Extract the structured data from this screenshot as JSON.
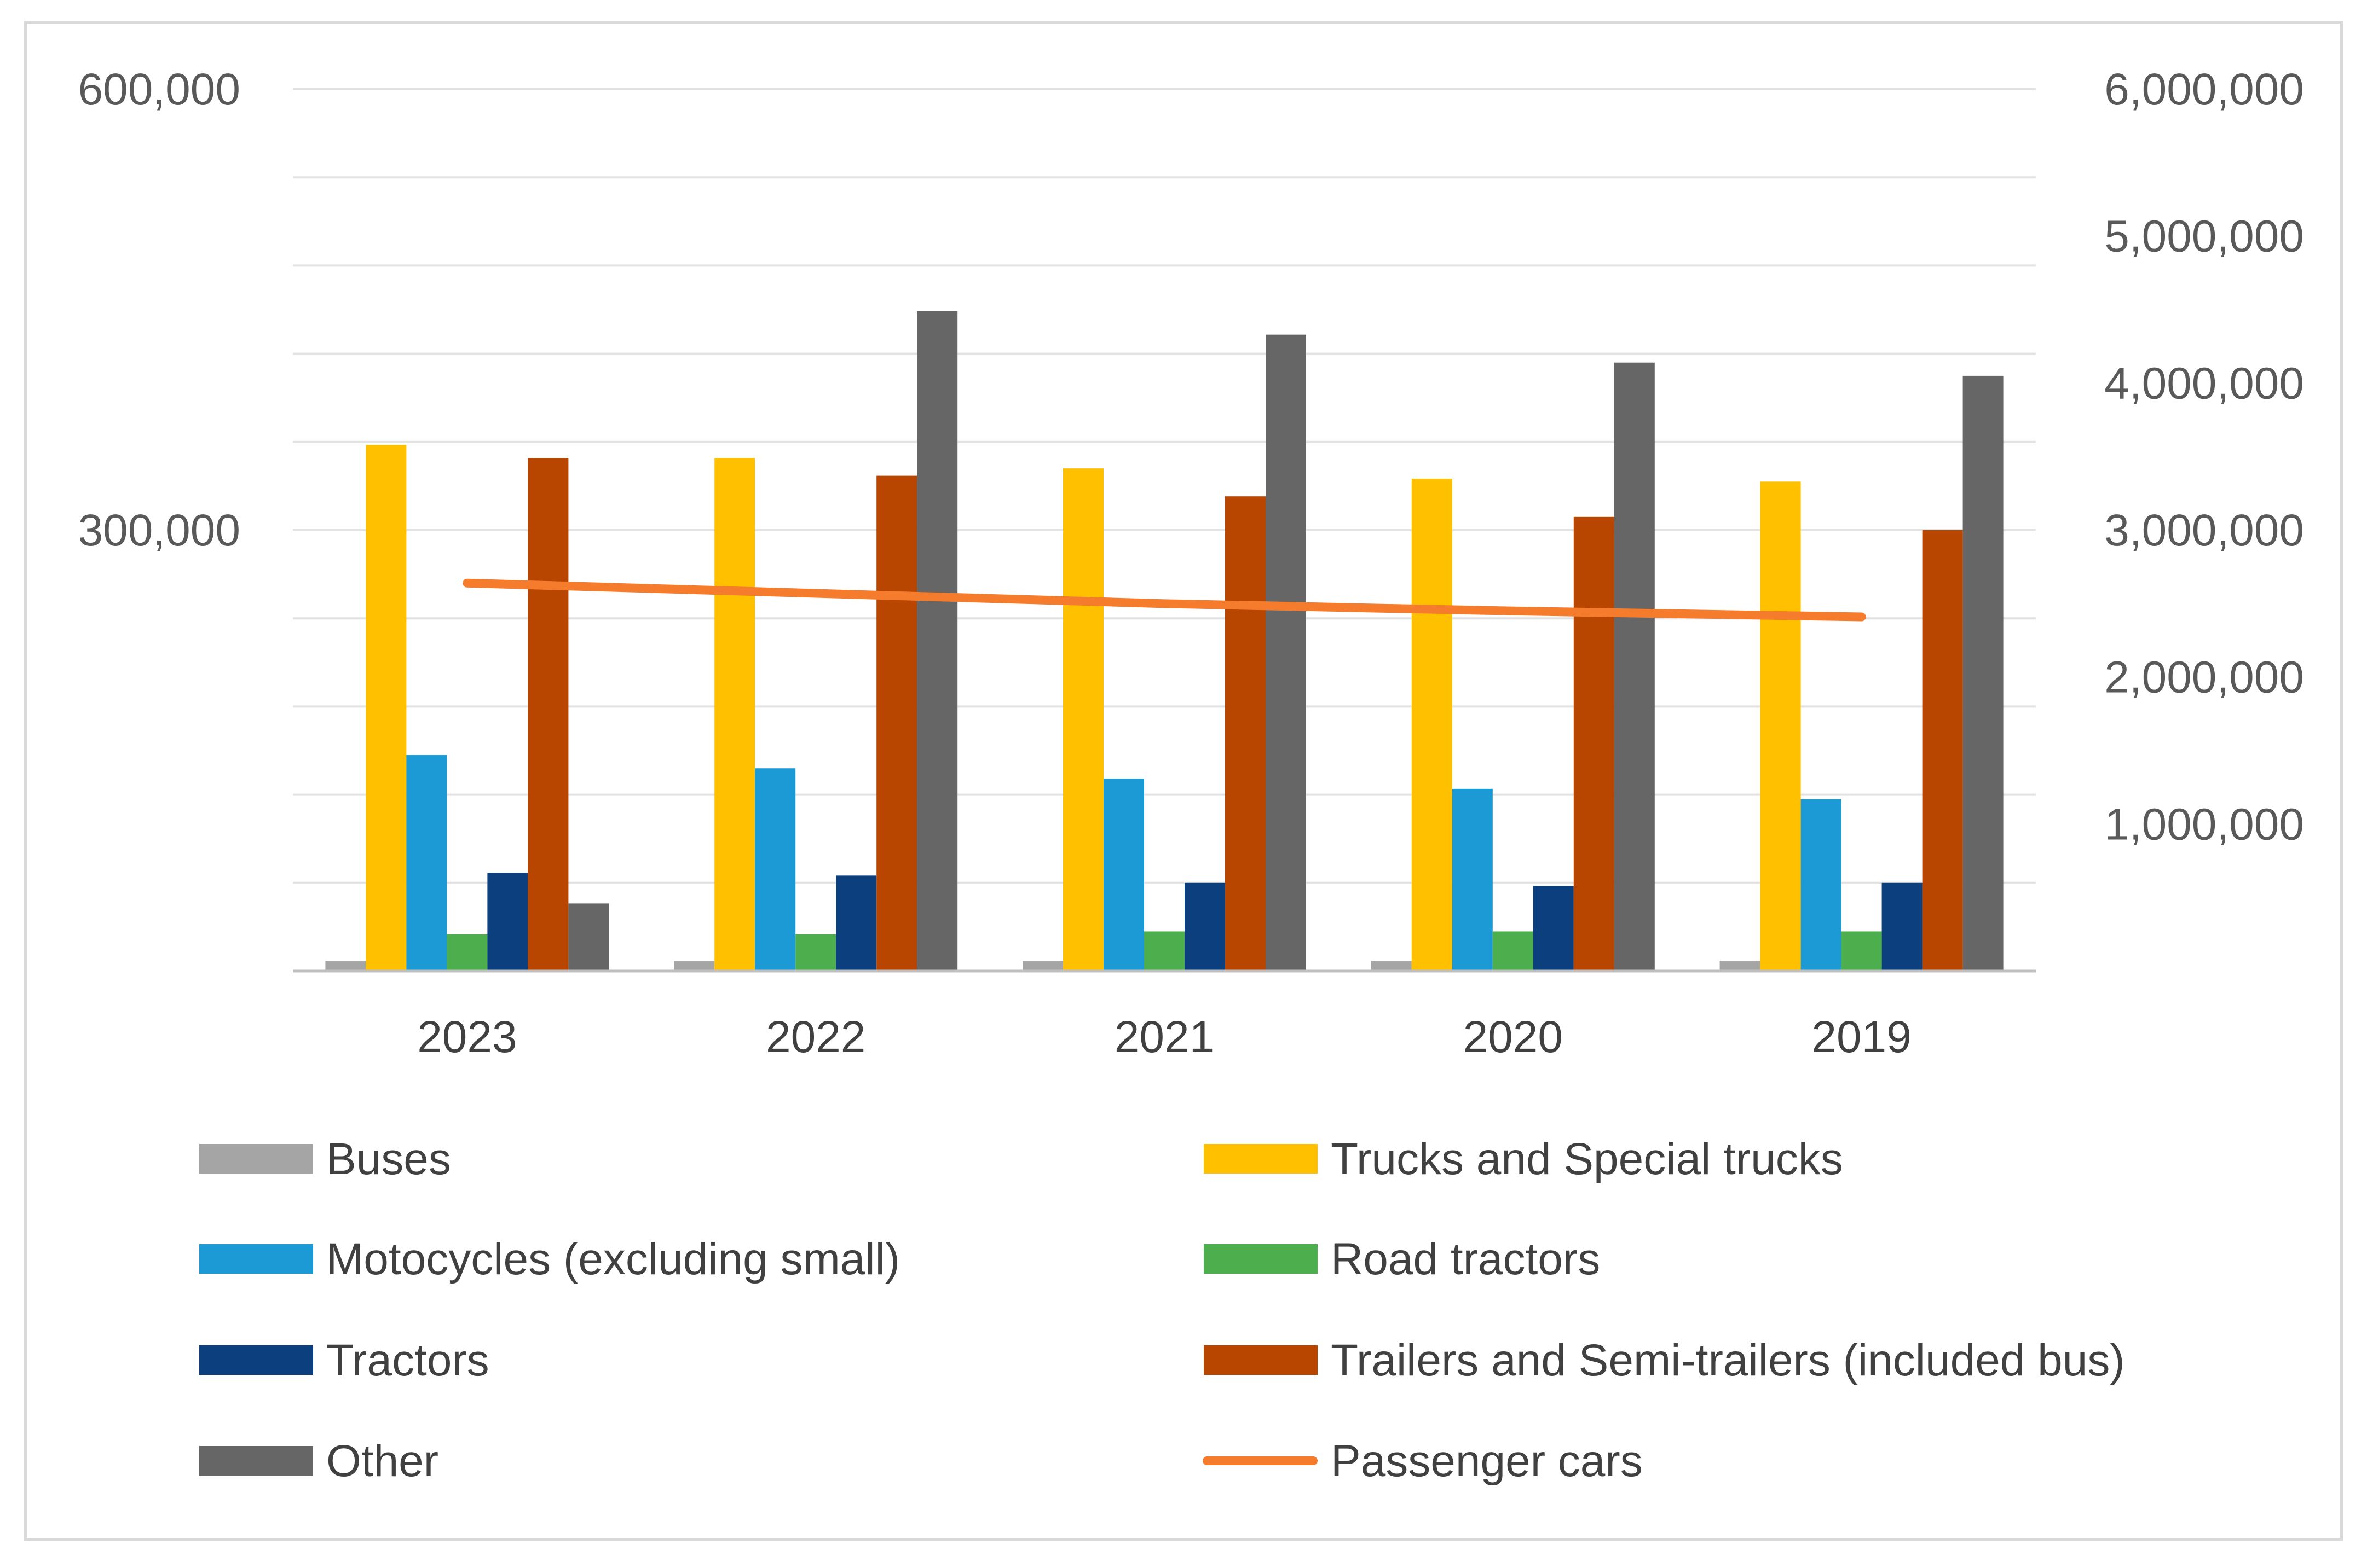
{
  "chart_data": {
    "type": "bar",
    "categories": [
      "2023",
      "2022",
      "2021",
      "2020",
      "2019"
    ],
    "left_axis": {
      "min": 0,
      "max": 600000,
      "ticks": [
        "600,000",
        "300,000"
      ],
      "tick_values": [
        600000,
        300000
      ]
    },
    "right_axis": {
      "min": 0,
      "max": 6000000,
      "ticks": [
        "6,000,000",
        "5,000,000",
        "4,000,000",
        "3,000,000",
        "2,000,000",
        "1,000,000"
      ],
      "tick_values": [
        6000000,
        5000000,
        4000000,
        3000000,
        2000000,
        1000000
      ]
    },
    "gridlines": true,
    "legend_position": "bottom",
    "series": [
      {
        "name": "Buses",
        "axis": "left",
        "kind": "bar",
        "color": "#a5a5a5",
        "values": [
          7000,
          7000,
          7000,
          7000,
          7000
        ]
      },
      {
        "name": "Trucks and Special trucks",
        "axis": "left",
        "kind": "bar",
        "color": "#ffc000",
        "values": [
          358000,
          349000,
          342000,
          335000,
          333000
        ]
      },
      {
        "name": "Motocycles (excluding small)",
        "axis": "left",
        "kind": "bar",
        "color": "#1b9ad6",
        "values": [
          147000,
          138000,
          131000,
          124000,
          117000
        ]
      },
      {
        "name": "Road tractors",
        "axis": "left",
        "kind": "bar",
        "color": "#4cae4c",
        "values": [
          25000,
          25000,
          27000,
          27000,
          27000
        ]
      },
      {
        "name": "Tractors",
        "axis": "left",
        "kind": "bar",
        "color": "#0b3f7d",
        "values": [
          67000,
          65000,
          60000,
          58000,
          60000
        ]
      },
      {
        "name": "Trailers and Semi-trailers (included bus)",
        "axis": "left",
        "kind": "bar",
        "color": "#b84500",
        "values": [
          349000,
          337000,
          323000,
          309000,
          300000
        ]
      },
      {
        "name": "Other",
        "axis": "right",
        "kind": "bar",
        "color": "#666666",
        "values": [
          460000,
          4490000,
          4330000,
          4140000,
          4050000
        ]
      },
      {
        "name": "Passenger cars",
        "axis": "right",
        "kind": "line",
        "color": "#f47c2c",
        "values": [
          2640000,
          2570000,
          2500000,
          2450000,
          2410000
        ]
      }
    ]
  }
}
